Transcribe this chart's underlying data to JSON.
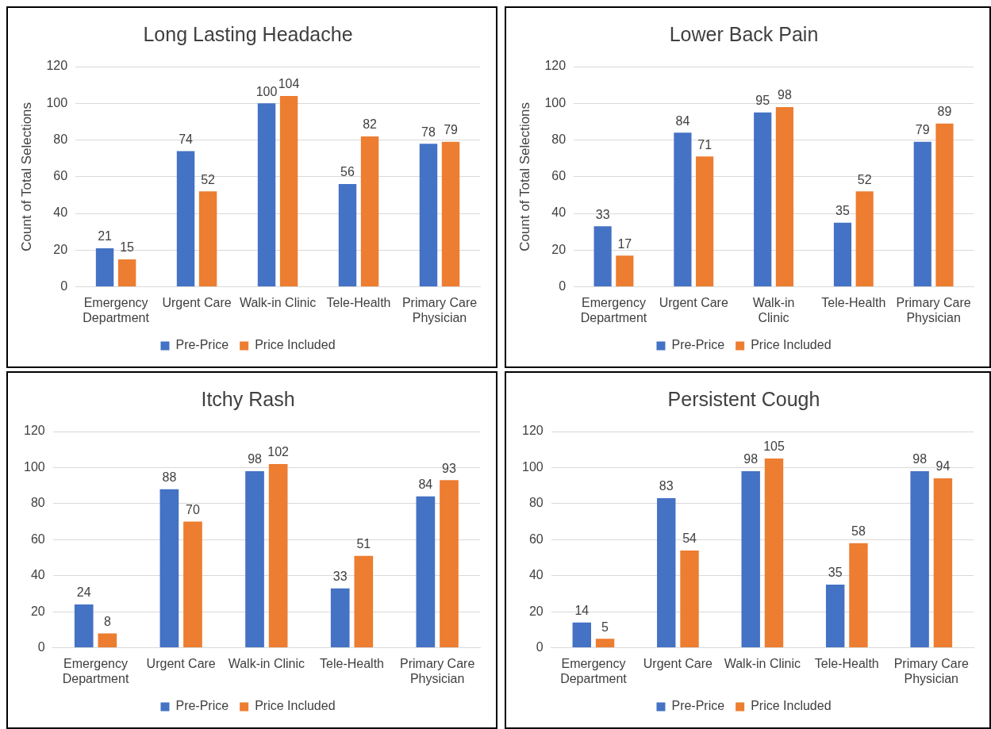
{
  "chart_data": [
    {
      "type": "bar",
      "title": "Long Lasting Headache",
      "ylabel": "Count of Total Selections",
      "categories": [
        "Emergency Department",
        "Urgent Care",
        "Walk-in Clinic",
        "Tele-Health",
        "Primary Care Physician"
      ],
      "series": [
        {
          "name": "Pre-Price",
          "color": "#4472c4",
          "values": [
            21,
            74,
            100,
            56,
            78
          ]
        },
        {
          "name": "Price Included",
          "color": "#ed7d31",
          "values": [
            15,
            52,
            104,
            82,
            79
          ]
        }
      ],
      "ylim": [
        0,
        120
      ],
      "yticks": [
        0,
        20,
        40,
        60,
        80,
        100,
        120
      ],
      "grid": "y",
      "legend": "bottom",
      "data_labels": true
    },
    {
      "type": "bar",
      "title": "Lower Back Pain",
      "ylabel": "Count of Total Selections",
      "categories": [
        "Emergency Department",
        "Urgent Care",
        "Walk-in Clinic",
        "Tele-Health",
        "Primary Care Physician"
      ],
      "series": [
        {
          "name": "Pre-Price",
          "color": "#4472c4",
          "values": [
            33,
            84,
            95,
            35,
            79
          ]
        },
        {
          "name": "Price Included",
          "color": "#ed7d31",
          "values": [
            17,
            71,
            98,
            52,
            89
          ]
        }
      ],
      "ylim": [
        0,
        120
      ],
      "yticks": [
        0,
        20,
        40,
        60,
        80,
        100,
        120
      ],
      "grid": "y",
      "legend": "bottom",
      "data_labels": true
    },
    {
      "type": "bar",
      "title": "Itchy Rash",
      "categories": [
        "Emergency Department",
        "Urgent Care",
        "Walk-in Clinic",
        "Tele-Health",
        "Primary Care Physician"
      ],
      "series": [
        {
          "name": "Pre-Price",
          "color": "#4472c4",
          "values": [
            24,
            88,
            98,
            33,
            84
          ]
        },
        {
          "name": "Price Included",
          "color": "#ed7d31",
          "values": [
            8,
            70,
            102,
            51,
            93
          ]
        }
      ],
      "ylim": [
        0,
        120
      ],
      "yticks": [
        0,
        20,
        40,
        60,
        80,
        100,
        120
      ],
      "grid": "y",
      "legend": "bottom",
      "data_labels": true
    },
    {
      "type": "bar",
      "title": "Persistent Cough",
      "categories": [
        "Emergency Department",
        "Urgent Care",
        "Walk-in Clinic",
        "Tele-Health",
        "Primary Care Physician"
      ],
      "series": [
        {
          "name": "Pre-Price",
          "color": "#4472c4",
          "values": [
            14,
            83,
            98,
            35,
            98
          ]
        },
        {
          "name": "Price Included",
          "color": "#ed7d31",
          "values": [
            5,
            54,
            105,
            58,
            94
          ]
        }
      ],
      "ylim": [
        0,
        120
      ],
      "yticks": [
        0,
        20,
        40,
        60,
        80,
        100,
        120
      ],
      "grid": "y",
      "legend": "bottom",
      "data_labels": true
    }
  ]
}
